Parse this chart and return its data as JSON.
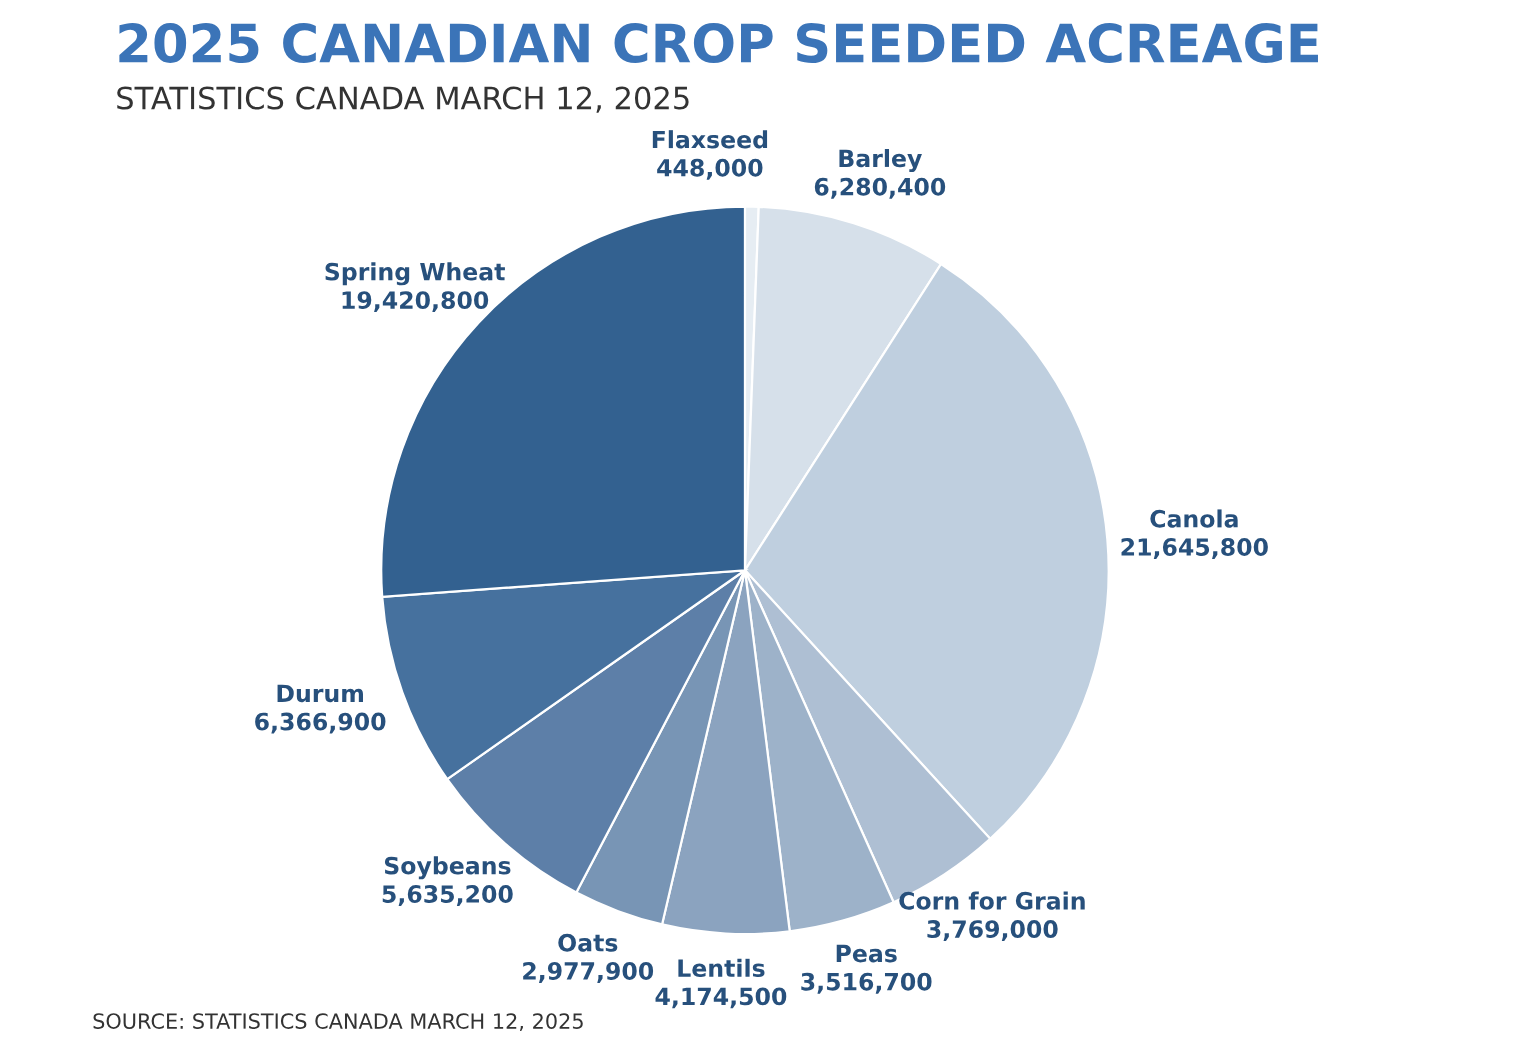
{
  "chart_data": {
    "type": "pie",
    "title": "2025 CANADIAN CROP SEEDED ACREAGE",
    "subtitle": "STATISTICS CANADA MARCH 12, 2025",
    "categories": [
      "Flaxseed",
      "Barley",
      "Canola",
      "Corn for Grain",
      "Peas",
      "Lentils",
      "Oats",
      "Soybeans",
      "Durum",
      "Spring Wheat"
    ],
    "values": [
      448000,
      6280400,
      21645800,
      3769000,
      3516700,
      4174500,
      2977900,
      5635200,
      6366900,
      19420800
    ],
    "colors": [
      "#e6edf3",
      "#d6e0ea",
      "#bfcfdf",
      "#aebfd3",
      "#9db2c9",
      "#8ba3bf",
      "#7895b5",
      "#5d7fa8",
      "#46719e",
      "#336190"
    ],
    "value_labels": [
      "448,000",
      "6,280,400",
      "21,645,800",
      "3,769,000",
      "3,516,700",
      "4,174,500",
      "2,977,900",
      "5,635,200",
      "6,366,900",
      "19,420,800"
    ],
    "legend": false,
    "annotations": [
      "SOURCE: STATISTICS CANADA MARCH 12, 2025"
    ]
  }
}
